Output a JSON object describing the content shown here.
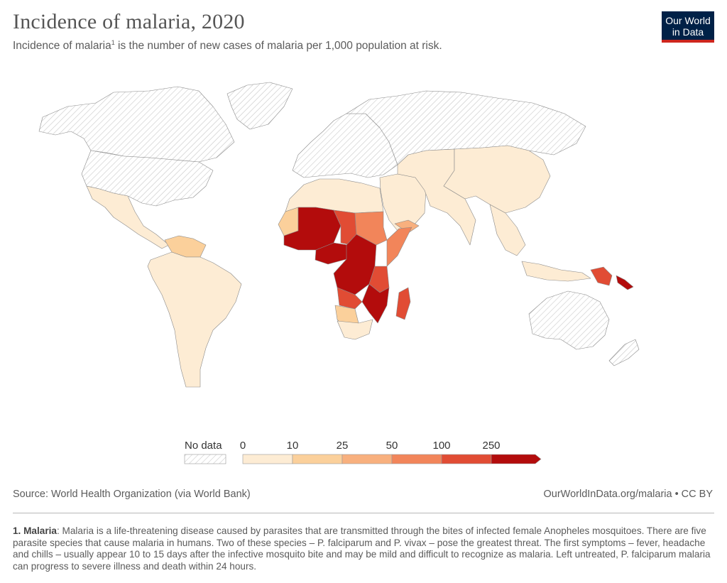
{
  "header": {
    "title": "Incidence of malaria, 2020",
    "subtitle_pre": "Incidence of malaria",
    "subtitle_sup": "1",
    "subtitle_post": " is the number of new cases of malaria per 1,000 population at risk."
  },
  "logo": {
    "line1": "Our World",
    "line2": "in Data"
  },
  "legend": {
    "no_data_label": "No data",
    "ticks": [
      "0",
      "10",
      "25",
      "50",
      "100",
      "250"
    ],
    "bins": [
      {
        "from": 0,
        "to": 10,
        "color": "#fdecd4"
      },
      {
        "from": 10,
        "to": 25,
        "color": "#fbd09b"
      },
      {
        "from": 25,
        "to": 50,
        "color": "#f8b07e"
      },
      {
        "from": 50,
        "to": 100,
        "color": "#f2855a"
      },
      {
        "from": 100,
        "to": 250,
        "color": "#e14c34"
      },
      {
        "from": 250,
        "to": null,
        "color": "#b30c0c"
      }
    ]
  },
  "footer": {
    "source": "Source: World Health Organization (via World Bank)",
    "url": "OurWorldInData.org/malaria • CC BY"
  },
  "note": {
    "term": "1. Malaria",
    "text": ": Malaria is a life-threatening disease caused by parasites that are transmitted through the bites of infected female Anopheles mosquitoes. There are five parasite species that cause malaria in humans. Two of these species – P. falciparum and P. vivax – pose the greatest threat. The first symptoms – fever, headache and chills – usually appear 10 to 15 days after the infective mosquito bite and may be mild and difficult to recognize as malaria. Left untreated, P. falciparum malaria can progress to severe illness and death within 24 hours."
  },
  "map_colors": {
    "very_low": "#fdecd4",
    "low": "#fbd09b",
    "mid": "#f8b07e",
    "high": "#f2855a",
    "very_high": "#e14c34",
    "extreme": "#b30c0c",
    "no_data_hatch": "#c8c8c8"
  }
}
